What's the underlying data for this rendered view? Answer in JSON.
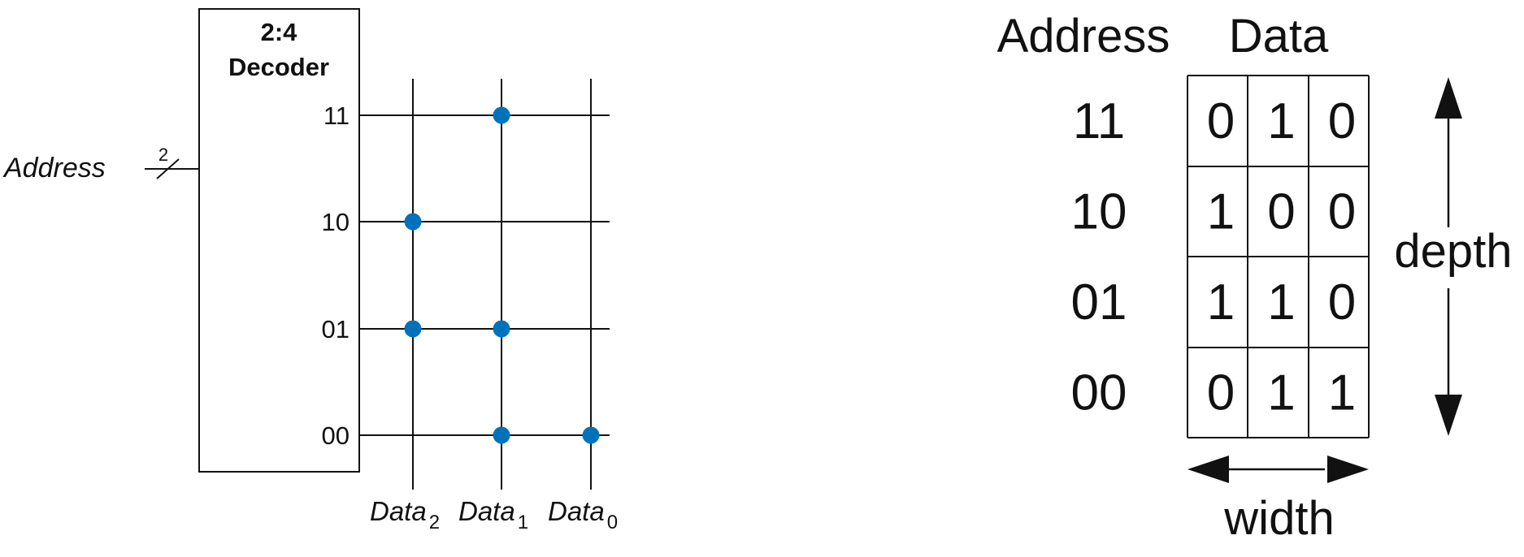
{
  "rom_diagram": {
    "decoder": {
      "title_line1": "2:4",
      "title_line2": "Decoder"
    },
    "address_input": {
      "label": "Address",
      "bus_width": "2"
    },
    "rows": [
      {
        "address": "11",
        "bits": [
          0,
          1,
          0
        ]
      },
      {
        "address": "10",
        "bits": [
          1,
          0,
          0
        ]
      },
      {
        "address": "01",
        "bits": [
          1,
          1,
          0
        ]
      },
      {
        "address": "00",
        "bits": [
          0,
          1,
          1
        ]
      }
    ],
    "columns": [
      {
        "base": "Data",
        "sub": "2"
      },
      {
        "base": "Data",
        "sub": "1"
      },
      {
        "base": "Data",
        "sub": "0"
      }
    ],
    "dot_color": "#0072BC"
  },
  "memory_array": {
    "address_header": "Address",
    "data_header": "Data",
    "depth_label": "depth",
    "width_label": "width",
    "rows": [
      {
        "address": "11",
        "cells": [
          "0",
          "1",
          "0"
        ]
      },
      {
        "address": "10",
        "cells": [
          "1",
          "0",
          "0"
        ]
      },
      {
        "address": "01",
        "cells": [
          "1",
          "1",
          "0"
        ]
      },
      {
        "address": "00",
        "cells": [
          "0",
          "1",
          "1"
        ]
      }
    ]
  }
}
